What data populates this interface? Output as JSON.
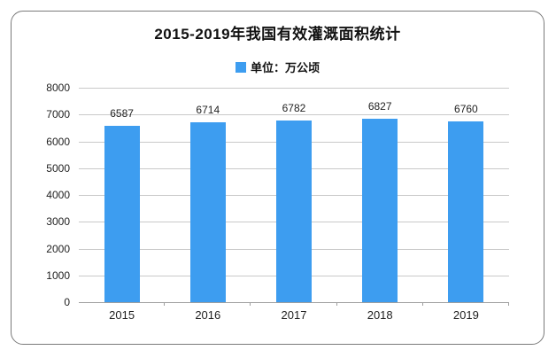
{
  "card": {
    "background": "#ffffff",
    "border_color": "#7a7a7a"
  },
  "chart_data": {
    "type": "bar",
    "title": "2015-2019年我国有效灌溉面积统计",
    "legend": [
      "单位：万公顷"
    ],
    "legend_position": "top-center",
    "categories": [
      "2015",
      "2016",
      "2017",
      "2018",
      "2019"
    ],
    "values": [
      6587,
      6714,
      6782,
      6827,
      6760
    ],
    "xlabel": "",
    "ylabel": "",
    "ylim": [
      0,
      8000
    ],
    "yticks": [
      0,
      1000,
      2000,
      3000,
      4000,
      5000,
      6000,
      7000,
      8000
    ],
    "grid": true,
    "value_labels": true,
    "bar_color": "#3D9DF0",
    "gridline_color": "#c9c9c9",
    "axis_color": "#9e9e9e",
    "text_color": "#1f1f1f"
  }
}
